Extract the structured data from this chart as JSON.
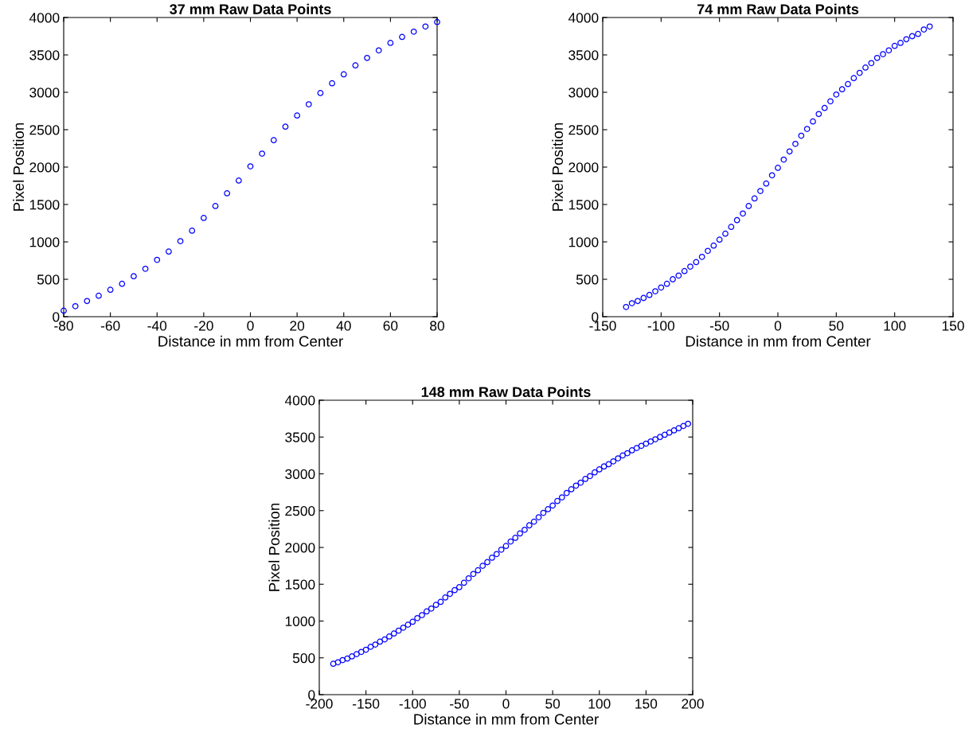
{
  "chart_data": [
    {
      "type": "scatter",
      "title": "37 mm Raw Data Points",
      "xlabel": "Distance in mm from Center",
      "ylabel": "Pixel Position",
      "marker": "circle",
      "grid": false,
      "xlim": [
        -80,
        80
      ],
      "xticks": [
        -80,
        -60,
        -40,
        -20,
        0,
        20,
        40,
        60,
        80
      ],
      "ylim": [
        0,
        4000
      ],
      "yticks": [
        0,
        500,
        1000,
        1500,
        2000,
        2500,
        3000,
        3500,
        4000
      ],
      "series": [
        {
          "color": "#0000ff",
          "x": [
            -80,
            -75,
            -70,
            -65,
            -60,
            -55,
            -50,
            -45,
            -40,
            -35,
            -30,
            -25,
            -20,
            -15,
            -10,
            -5,
            0,
            5,
            10,
            15,
            20,
            25,
            30,
            35,
            40,
            45,
            50,
            55,
            60,
            65,
            70,
            75,
            80
          ],
          "values": [
            80,
            140,
            210,
            280,
            360,
            440,
            540,
            640,
            760,
            870,
            1010,
            1150,
            1320,
            1480,
            1650,
            1820,
            2010,
            2180,
            2360,
            2540,
            2690,
            2840,
            2990,
            3120,
            3240,
            3360,
            3460,
            3560,
            3660,
            3740,
            3810,
            3880,
            3940
          ]
        }
      ]
    },
    {
      "type": "scatter",
      "title": "74 mm Raw Data Points",
      "xlabel": "Distance in mm from Center",
      "ylabel": "Pixel Position",
      "marker": "circle",
      "grid": false,
      "xlim": [
        -150,
        150
      ],
      "xticks": [
        -150,
        -100,
        -50,
        0,
        50,
        100,
        150
      ],
      "ylim": [
        0,
        4000
      ],
      "yticks": [
        0,
        500,
        1000,
        1500,
        2000,
        2500,
        3000,
        3500,
        4000
      ],
      "series": [
        {
          "color": "#0000ff",
          "x": [
            -130,
            -125,
            -120,
            -115,
            -110,
            -105,
            -100,
            -95,
            -90,
            -85,
            -80,
            -75,
            -70,
            -65,
            -60,
            -55,
            -50,
            -45,
            -40,
            -35,
            -30,
            -25,
            -20,
            -15,
            -10,
            -5,
            0,
            5,
            10,
            15,
            20,
            25,
            30,
            35,
            40,
            45,
            50,
            55,
            60,
            65,
            70,
            75,
            80,
            85,
            90,
            95,
            100,
            105,
            110,
            115,
            120,
            125,
            130
          ],
          "values": [
            130,
            180,
            210,
            250,
            290,
            340,
            390,
            440,
            500,
            550,
            610,
            670,
            730,
            800,
            880,
            950,
            1030,
            1110,
            1200,
            1290,
            1380,
            1480,
            1580,
            1680,
            1780,
            1890,
            1990,
            2100,
            2210,
            2310,
            2420,
            2510,
            2610,
            2710,
            2790,
            2880,
            2970,
            3040,
            3110,
            3190,
            3260,
            3330,
            3390,
            3460,
            3510,
            3560,
            3620,
            3660,
            3710,
            3750,
            3780,
            3840,
            3880
          ]
        }
      ]
    },
    {
      "type": "scatter",
      "title": "148 mm Raw Data Points",
      "xlabel": "Distance in mm from Center",
      "ylabel": "Pixel Position",
      "marker": "circle",
      "grid": false,
      "xlim": [
        -200,
        200
      ],
      "xticks": [
        -200,
        -150,
        -100,
        -50,
        0,
        50,
        100,
        150,
        200
      ],
      "ylim": [
        0,
        4000
      ],
      "yticks": [
        0,
        500,
        1000,
        1500,
        2000,
        2500,
        3000,
        3500,
        4000
      ],
      "series": [
        {
          "color": "#0000ff",
          "x": [
            -185,
            -180,
            -175,
            -170,
            -165,
            -160,
            -155,
            -150,
            -145,
            -140,
            -135,
            -130,
            -125,
            -120,
            -115,
            -110,
            -105,
            -100,
            -95,
            -90,
            -85,
            -80,
            -75,
            -70,
            -65,
            -60,
            -55,
            -50,
            -45,
            -40,
            -35,
            -30,
            -25,
            -20,
            -15,
            -10,
            -5,
            0,
            5,
            10,
            15,
            20,
            25,
            30,
            35,
            40,
            45,
            50,
            55,
            60,
            65,
            70,
            75,
            80,
            85,
            90,
            95,
            100,
            105,
            110,
            115,
            120,
            125,
            130,
            135,
            140,
            145,
            150,
            155,
            160,
            165,
            170,
            175,
            180,
            185,
            190,
            195
          ],
          "values": [
            420,
            440,
            470,
            490,
            520,
            550,
            580,
            610,
            650,
            680,
            720,
            750,
            790,
            830,
            870,
            910,
            950,
            990,
            1040,
            1080,
            1130,
            1170,
            1220,
            1260,
            1320,
            1370,
            1420,
            1460,
            1520,
            1580,
            1640,
            1690,
            1750,
            1800,
            1860,
            1910,
            1970,
            2020,
            2080,
            2130,
            2190,
            2240,
            2300,
            2350,
            2410,
            2470,
            2520,
            2570,
            2630,
            2680,
            2740,
            2790,
            2840,
            2880,
            2930,
            2970,
            3020,
            3060,
            3100,
            3130,
            3170,
            3210,
            3250,
            3280,
            3320,
            3350,
            3380,
            3410,
            3440,
            3470,
            3500,
            3530,
            3560,
            3590,
            3620,
            3650,
            3680
          ]
        }
      ]
    }
  ]
}
